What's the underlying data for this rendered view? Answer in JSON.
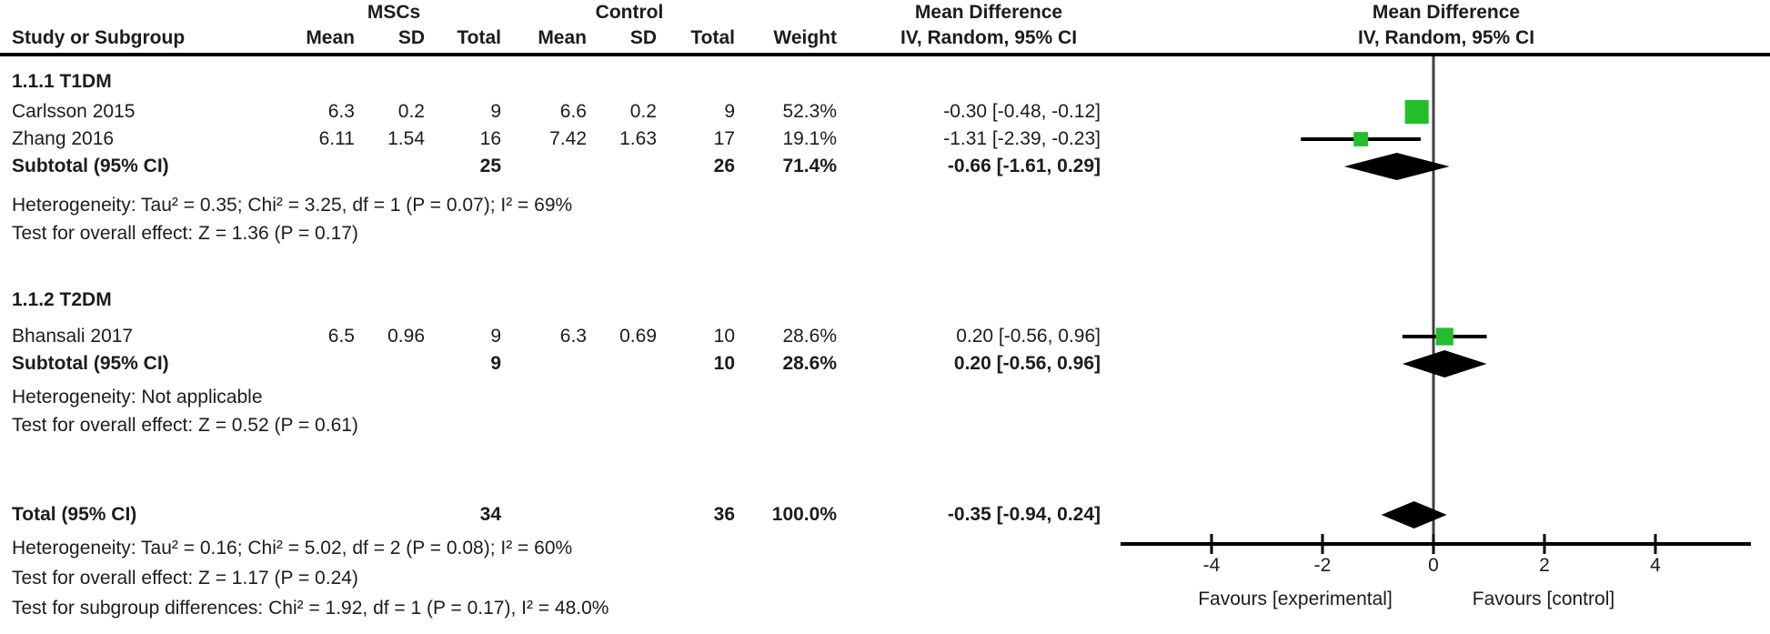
{
  "header": {
    "group1": "MSCs",
    "group2": "Control",
    "study_col": "Study or Subgroup",
    "mean_col": "Mean",
    "sd_col": "SD",
    "total_col": "Total",
    "weight_col": "Weight",
    "md_col": "Mean Difference",
    "method_col": "IV, Random, 95% CI"
  },
  "sections": [
    {
      "label": "1.1.1 T1DM",
      "studies": [
        {
          "name": "Carlsson 2015",
          "mean1": "6.3",
          "sd1": "0.2",
          "total1": "9",
          "mean2": "6.6",
          "sd2": "0.2",
          "total2": "9",
          "weight": "52.3%",
          "ci_text": "-0.30 [-0.48, -0.12]",
          "md": -0.3,
          "lo": -0.48,
          "hi": -0.12,
          "weight_val": 52.3
        },
        {
          "name": "Zhang 2016",
          "mean1": "6.11",
          "sd1": "1.54",
          "total1": "16",
          "mean2": "7.42",
          "sd2": "1.63",
          "total2": "17",
          "weight": "19.1%",
          "ci_text": "-1.31 [-2.39, -0.23]",
          "md": -1.31,
          "lo": -2.39,
          "hi": -0.23,
          "weight_val": 19.1
        }
      ],
      "subtotal": {
        "label": "Subtotal (95% CI)",
        "total1": "25",
        "total2": "26",
        "weight": "71.4%",
        "ci_text": "-0.66 [-1.61, 0.29]",
        "md": -0.66,
        "lo": -1.61,
        "hi": 0.29
      },
      "heterogeneity": "Heterogeneity: Tau² = 0.35; Chi² = 3.25, df = 1 (P = 0.07); I² = 69%",
      "overall_effect": "Test for overall effect: Z = 1.36 (P = 0.17)"
    },
    {
      "label": "1.1.2 T2DM",
      "studies": [
        {
          "name": "Bhansali 2017",
          "mean1": "6.5",
          "sd1": "0.96",
          "total1": "9",
          "mean2": "6.3",
          "sd2": "0.69",
          "total2": "10",
          "weight": "28.6%",
          "ci_text": "0.20 [-0.56, 0.96]",
          "md": 0.2,
          "lo": -0.56,
          "hi": 0.96,
          "weight_val": 28.6
        }
      ],
      "subtotal": {
        "label": "Subtotal (95% CI)",
        "total1": "9",
        "total2": "10",
        "weight": "28.6%",
        "ci_text": "0.20 [-0.56, 0.96]",
        "md": 0.2,
        "lo": -0.56,
        "hi": 0.96
      },
      "heterogeneity": "Heterogeneity: Not applicable",
      "overall_effect": "Test for overall effect: Z = 0.52 (P = 0.61)"
    }
  ],
  "total": {
    "label": "Total (95% CI)",
    "total1": "34",
    "total2": "36",
    "weight": "100.0%",
    "ci_text": "-0.35 [-0.94, 0.24]",
    "md": -0.35,
    "lo": -0.94,
    "hi": 0.24
  },
  "footer_lines": [
    "Heterogeneity: Tau² = 0.16; Chi² = 5.02, df = 2 (P = 0.08); I² = 60%",
    "Test for overall effect: Z = 1.17 (P = 0.24)",
    "Test for subgroup differences: Chi² = 1.92, df = 1 (P = 0.17), I² = 48.0%"
  ],
  "axis": {
    "ticks": [
      -4,
      -2,
      0,
      2,
      4
    ],
    "favours_left": "Favours [experimental]",
    "favours_right": "Favours [control]"
  },
  "colors": {
    "square_green": "#22bf2a",
    "diamond_black": "#000000",
    "axis_black": "#000000",
    "zero_line_gray": "#404040",
    "text": "#1c1c1c"
  },
  "chart_data": {
    "type": "forest",
    "effect_measure": "Mean Difference",
    "model": "IV, Random, 95% CI",
    "groups": [
      "MSCs",
      "Control"
    ],
    "xlabel_left": "Favours [experimental]",
    "xlabel_right": "Favours [control]",
    "x_ticks": [
      -4,
      -2,
      0,
      2,
      4
    ],
    "xlim": [
      -5.6,
      5.7
    ],
    "subgroups": [
      {
        "name": "1.1.1 T1DM",
        "studies": [
          {
            "study": "Carlsson 2015",
            "msc_mean": 6.3,
            "msc_sd": 0.2,
            "msc_total": 9,
            "ctrl_mean": 6.6,
            "ctrl_sd": 0.2,
            "ctrl_total": 9,
            "weight_pct": 52.3,
            "md": -0.3,
            "ci_low": -0.48,
            "ci_high": -0.12
          },
          {
            "study": "Zhang 2016",
            "msc_mean": 6.11,
            "msc_sd": 1.54,
            "msc_total": 16,
            "ctrl_mean": 7.42,
            "ctrl_sd": 1.63,
            "ctrl_total": 17,
            "weight_pct": 19.1,
            "md": -1.31,
            "ci_low": -2.39,
            "ci_high": -0.23
          }
        ],
        "subtotal": {
          "msc_total": 25,
          "ctrl_total": 26,
          "weight_pct": 71.4,
          "md": -0.66,
          "ci_low": -1.61,
          "ci_high": 0.29
        },
        "heterogeneity": {
          "tau2": 0.35,
          "chi2": 3.25,
          "df": 1,
          "p": 0.07,
          "i2_pct": 69
        },
        "overall_effect": {
          "z": 1.36,
          "p": 0.17
        }
      },
      {
        "name": "1.1.2 T2DM",
        "studies": [
          {
            "study": "Bhansali 2017",
            "msc_mean": 6.5,
            "msc_sd": 0.96,
            "msc_total": 9,
            "ctrl_mean": 6.3,
            "ctrl_sd": 0.69,
            "ctrl_total": 10,
            "weight_pct": 28.6,
            "md": 0.2,
            "ci_low": -0.56,
            "ci_high": 0.96
          }
        ],
        "subtotal": {
          "msc_total": 9,
          "ctrl_total": 10,
          "weight_pct": 28.6,
          "md": 0.2,
          "ci_low": -0.56,
          "ci_high": 0.96
        },
        "heterogeneity": "Not applicable",
        "overall_effect": {
          "z": 0.52,
          "p": 0.61
        }
      }
    ],
    "total": {
      "msc_total": 34,
      "ctrl_total": 36,
      "weight_pct": 100.0,
      "md": -0.35,
      "ci_low": -0.94,
      "ci_high": 0.24
    },
    "total_heterogeneity": {
      "tau2": 0.16,
      "chi2": 5.02,
      "df": 2,
      "p": 0.08,
      "i2_pct": 60
    },
    "total_overall_effect": {
      "z": 1.17,
      "p": 0.24
    },
    "subgroup_differences": {
      "chi2": 1.92,
      "df": 1,
      "p": 0.17,
      "i2_pct": 48.0
    }
  }
}
